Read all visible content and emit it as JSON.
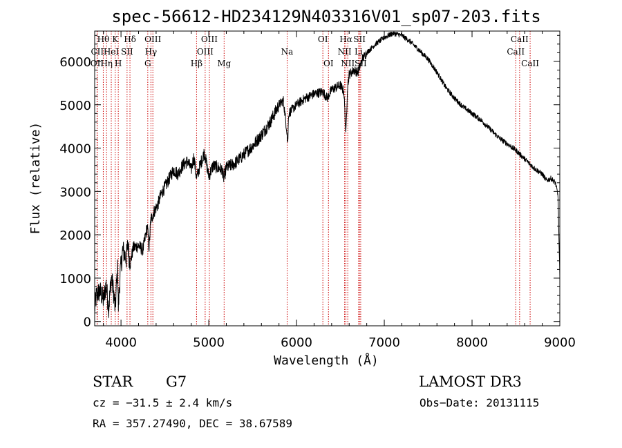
{
  "chart_data": {
    "type": "line",
    "title": "spec-56612-HD234129N403316V01_sp07-203.fits",
    "xlabel": "Wavelength (Å)",
    "ylabel": "Flux (relative)",
    "xlim": [
      3700,
      9000
    ],
    "ylim": [
      -100,
      6700
    ],
    "xticks": [
      4000,
      5000,
      6000,
      7000,
      8000,
      9000
    ],
    "yticks": [
      0,
      1000,
      2000,
      3000,
      4000,
      5000,
      6000
    ],
    "series": [
      {
        "name": "flux",
        "anchors": [
          [
            3700,
            300
          ],
          [
            3720,
            600
          ],
          [
            3760,
            700
          ],
          [
            3800,
            500
          ],
          [
            3830,
            850
          ],
          [
            3860,
            300
          ],
          [
            3890,
            1050
          ],
          [
            3920,
            600
          ],
          [
            3934,
            250
          ],
          [
            3960,
            1300
          ],
          [
            3969,
            300
          ],
          [
            3990,
            1100
          ],
          [
            4020,
            1650
          ],
          [
            4060,
            1450
          ],
          [
            4080,
            1800
          ],
          [
            4101,
            1300
          ],
          [
            4140,
            1700
          ],
          [
            4200,
            1750
          ],
          [
            4250,
            1650
          ],
          [
            4300,
            2200
          ],
          [
            4320,
            1700
          ],
          [
            4340,
            2350
          ],
          [
            4380,
            2550
          ],
          [
            4420,
            2700
          ],
          [
            4460,
            2950
          ],
          [
            4500,
            3100
          ],
          [
            4550,
            3300
          ],
          [
            4600,
            3500
          ],
          [
            4650,
            3400
          ],
          [
            4700,
            3600
          ],
          [
            4760,
            3700
          ],
          [
            4800,
            3500
          ],
          [
            4830,
            3800
          ],
          [
            4861,
            3300
          ],
          [
            4900,
            3600
          ],
          [
            4950,
            3900
          ],
          [
            5000,
            3350
          ],
          [
            5050,
            3600
          ],
          [
            5100,
            3550
          ],
          [
            5150,
            3500
          ],
          [
            5172,
            3300
          ],
          [
            5200,
            3550
          ],
          [
            5300,
            3650
          ],
          [
            5400,
            3850
          ],
          [
            5500,
            4050
          ],
          [
            5600,
            4300
          ],
          [
            5700,
            4600
          ],
          [
            5750,
            4800
          ],
          [
            5800,
            5000
          ],
          [
            5850,
            5100
          ],
          [
            5890,
            4400
          ],
          [
            5900,
            4100
          ],
          [
            5910,
            4800
          ],
          [
            6000,
            5000
          ],
          [
            6100,
            5150
          ],
          [
            6200,
            5250
          ],
          [
            6300,
            5300
          ],
          [
            6350,
            5150
          ],
          [
            6400,
            5350
          ],
          [
            6500,
            5450
          ],
          [
            6540,
            5300
          ],
          [
            6563,
            4300
          ],
          [
            6580,
            5400
          ],
          [
            6600,
            5700
          ],
          [
            6650,
            5800
          ],
          [
            6700,
            5750
          ],
          [
            6750,
            6050
          ],
          [
            6800,
            6200
          ],
          [
            6900,
            6400
          ],
          [
            7000,
            6550
          ],
          [
            7100,
            6650
          ],
          [
            7200,
            6600
          ],
          [
            7300,
            6450
          ],
          [
            7400,
            6250
          ],
          [
            7500,
            6050
          ],
          [
            7600,
            5750
          ],
          [
            7700,
            5400
          ],
          [
            7800,
            5150
          ],
          [
            7900,
            4950
          ],
          [
            8000,
            4800
          ],
          [
            8100,
            4650
          ],
          [
            8200,
            4450
          ],
          [
            8300,
            4250
          ],
          [
            8400,
            4100
          ],
          [
            8500,
            3950
          ],
          [
            8600,
            3750
          ],
          [
            8700,
            3550
          ],
          [
            8800,
            3400
          ],
          [
            8850,
            3250
          ],
          [
            8900,
            3300
          ],
          [
            8950,
            3200
          ],
          [
            8980,
            2900
          ],
          [
            9000,
            1000
          ]
        ]
      }
    ],
    "spectral_lines": [
      {
        "label": "Hθ",
        "x": 3798,
        "row": 1
      },
      {
        "label": "OII",
        "x": 3727,
        "row": 3
      },
      {
        "label": "CII",
        "x": 3730,
        "row": 2
      },
      {
        "label": "K",
        "x": 3934,
        "row": 1
      },
      {
        "label": "H",
        "x": 3969,
        "row": 3
      },
      {
        "label": "Hη",
        "x": 3835,
        "row": 3
      },
      {
        "label": "HeI",
        "x": 3889,
        "row": 2
      },
      {
        "label": "SII",
        "x": 4069,
        "row": 2
      },
      {
        "label": "Hδ",
        "x": 4102,
        "row": 1
      },
      {
        "label": "OIII",
        "x": 4363,
        "row": 1
      },
      {
        "label": "Hγ",
        "x": 4341,
        "row": 2
      },
      {
        "label": "G",
        "x": 4305,
        "row": 3
      },
      {
        "label": "Hβ",
        "x": 4861,
        "row": 3
      },
      {
        "label": "OIII",
        "x": 5007,
        "row": 1
      },
      {
        "label": "OIII",
        "x": 4959,
        "row": 2
      },
      {
        "label": "Mg",
        "x": 5175,
        "row": 3
      },
      {
        "label": "Na",
        "x": 5893,
        "row": 2
      },
      {
        "label": "OI",
        "x": 6300,
        "row": 1
      },
      {
        "label": "OI",
        "x": 6364,
        "row": 3
      },
      {
        "label": "Hα",
        "x": 6563,
        "row": 1
      },
      {
        "label": "NII",
        "x": 6548,
        "row": 2
      },
      {
        "label": "NII",
        "x": 6584,
        "row": 3
      },
      {
        "label": "SII",
        "x": 6717,
        "row": 1
      },
      {
        "label": "Li",
        "x": 6708,
        "row": 2
      },
      {
        "label": "SII",
        "x": 6731,
        "row": 3
      },
      {
        "label": "CaII",
        "x": 8542,
        "row": 1
      },
      {
        "label": "CaII",
        "x": 8498,
        "row": 2
      },
      {
        "label": "CaII",
        "x": 8662,
        "row": 3
      }
    ],
    "colors": {
      "line": "#000000",
      "marker": "#cc0000",
      "axis": "#000000"
    }
  },
  "info": {
    "object_class": "STAR",
    "subclass": "G7",
    "survey": "LAMOST DR3",
    "cz": "cz = −31.5 ± 2.4 km/s",
    "obs_date": "Obs−Date: 20131115",
    "coords": "RA = 357.27490, DEC =  38.67589"
  }
}
